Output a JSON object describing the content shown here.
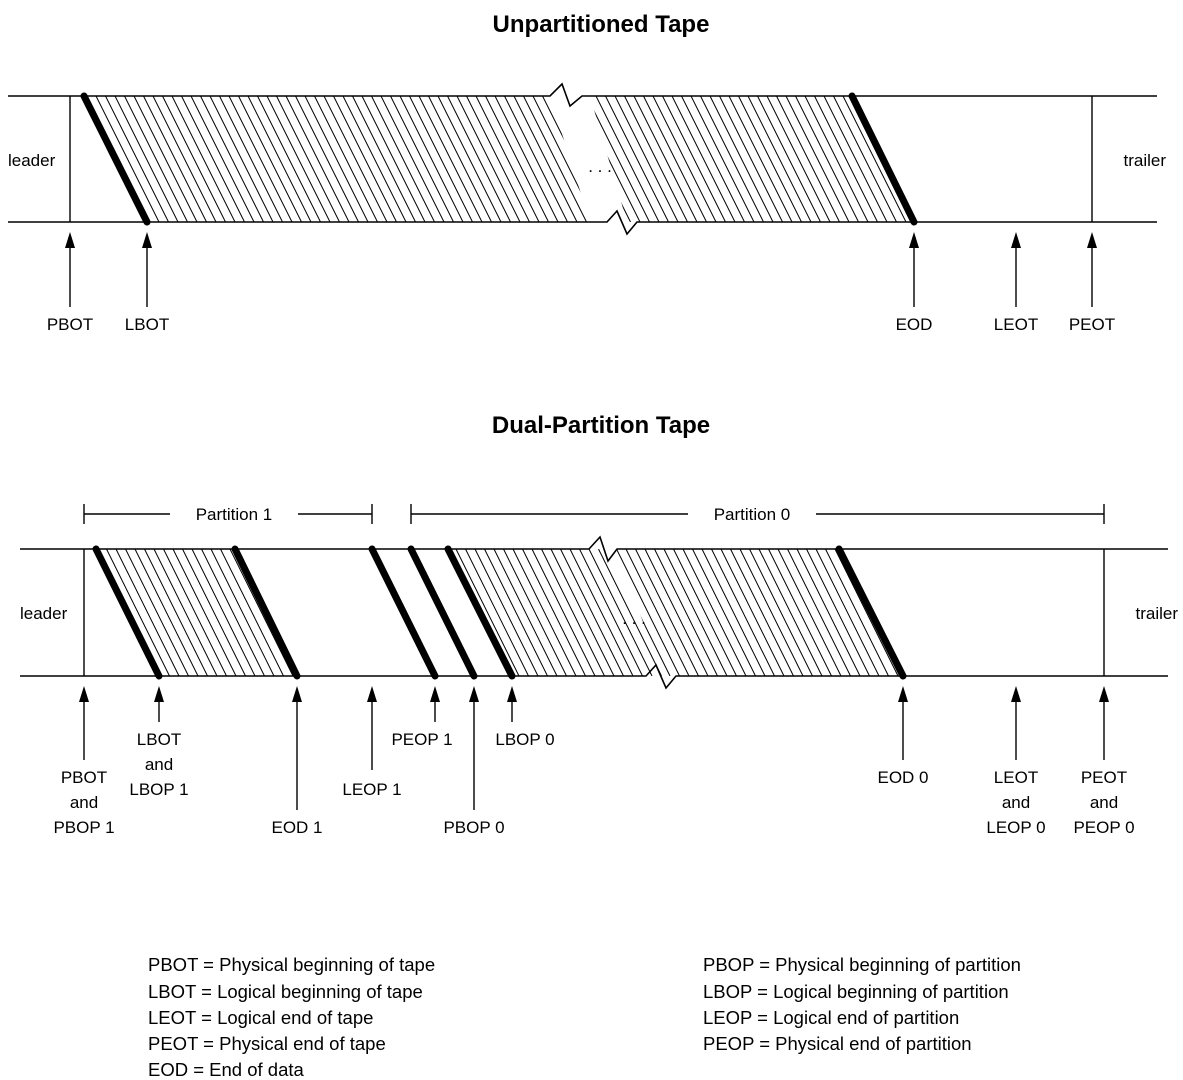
{
  "unpartitioned": {
    "title": "Unpartitioned Tape",
    "leader": "leader",
    "trailer": "trailer",
    "ellipsis": ". . .",
    "markers": [
      "PBOT",
      "LBOT",
      "EOD",
      "LEOT",
      "PEOT"
    ]
  },
  "dual": {
    "title": "Dual-Partition Tape",
    "leader": "leader",
    "trailer": "trailer",
    "ellipsis": ". . .",
    "partition1": "Partition 1",
    "partition0": "Partition 0",
    "markers": {
      "pbot": [
        "PBOT",
        "and",
        "PBOP 1"
      ],
      "lbot": [
        "LBOT",
        "and",
        "LBOP 1"
      ],
      "eod1": "EOD 1",
      "leop1": "LEOP 1",
      "peop1": "PEOP 1",
      "pbop0": "PBOP 0",
      "lbop0": "LBOP 0",
      "eod0": "EOD 0",
      "leot": [
        "LEOT",
        "and",
        "LEOP 0"
      ],
      "peot": [
        "PEOT",
        "and",
        "PEOP 0"
      ]
    }
  },
  "legend": {
    "left": [
      "PBOT = Physical beginning of tape",
      "LBOT = Logical beginning of tape",
      "LEOT = Logical end of tape",
      "PEOT = Physical end of tape",
      "EOD = End of data"
    ],
    "right": [
      "PBOP = Physical beginning of partition",
      "LBOP = Logical beginning of partition",
      "LEOP = Logical end of partition",
      "PEOP = Physical end of partition"
    ]
  }
}
